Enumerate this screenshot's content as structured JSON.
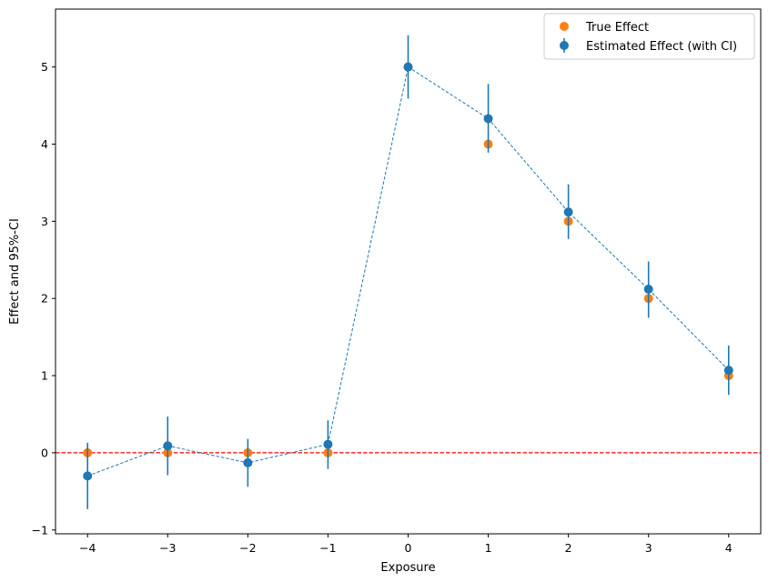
{
  "chart_data": {
    "type": "scatter",
    "title": "",
    "xlabel": "Exposure",
    "ylabel": "Effect and 95%-CI",
    "xlim": [
      -4.4,
      4.4
    ],
    "ylim": [
      -1.05,
      5.75
    ],
    "xticks": [
      -4,
      -3,
      -2,
      -1,
      0,
      1,
      2,
      3,
      4
    ],
    "xtick_labels": [
      "−4",
      "−3",
      "−2",
      "−1",
      "0",
      "1",
      "2",
      "3",
      "4"
    ],
    "yticks": [
      -1,
      0,
      1,
      2,
      3,
      4,
      5
    ],
    "ytick_labels": [
      "−1",
      "0",
      "1",
      "2",
      "3",
      "4",
      "5"
    ],
    "reference_line": {
      "y": 0,
      "style": "dashed",
      "color": "#ff0000"
    },
    "legend_position": "top-right",
    "grid": false,
    "series": [
      {
        "name": "True Effect",
        "color": "#ff7f0e",
        "marker": "circle",
        "x": [
          -4,
          -3,
          -2,
          -1,
          0,
          1,
          2,
          3,
          4
        ],
        "y": [
          0,
          0,
          0,
          0,
          5,
          4,
          3,
          2,
          1
        ]
      },
      {
        "name": "Estimated Effect (with CI)",
        "color": "#1f77b4",
        "marker": "circle",
        "line": "dashed",
        "x": [
          -4,
          -3,
          -2,
          -1,
          0,
          1,
          2,
          3,
          4
        ],
        "y": [
          -0.3,
          0.09,
          -0.13,
          0.11,
          5.0,
          4.33,
          3.12,
          2.12,
          1.07
        ],
        "ci_low": [
          -0.73,
          -0.29,
          -0.44,
          -0.21,
          4.59,
          3.89,
          2.77,
          1.75,
          0.75
        ],
        "ci_high": [
          0.13,
          0.47,
          0.18,
          0.42,
          5.41,
          4.78,
          3.48,
          2.48,
          1.39
        ]
      }
    ]
  }
}
